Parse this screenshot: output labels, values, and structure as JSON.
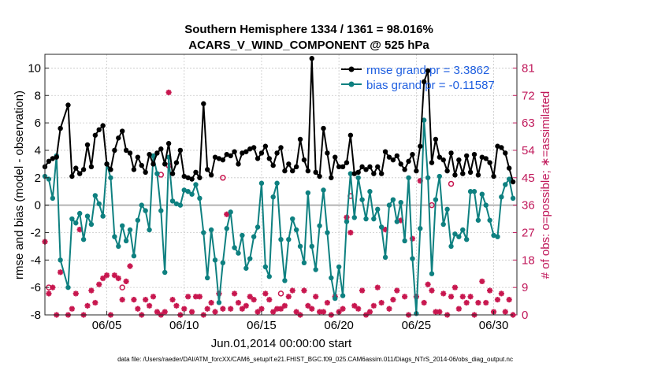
{
  "chart_data": {
    "type": "line",
    "title_line1": "Southern Hemisphere 1334 / 1361 = 98.016%",
    "title_line2": "ACARS_V_WIND_COMPONENT @ 525 hPa",
    "xlabel": "Jun.01,2014 00:00:00 start",
    "ylabel_left": "rmse and bias (model - observation)",
    "ylabel_right": "# of obs: o=possible; ∗=assimilated",
    "x_ticks": [
      {
        "day": 5,
        "label": "06/05"
      },
      {
        "day": 10,
        "label": "06/10"
      },
      {
        "day": 15,
        "label": "06/15"
      },
      {
        "day": 20,
        "label": "06/20"
      },
      {
        "day": 25,
        "label": "06/25"
      },
      {
        "day": 30,
        "label": "06/30"
      }
    ],
    "xlim": [
      1.0,
      31.5
    ],
    "ylim_left": [
      -8,
      11
    ],
    "yticks_left": [
      -8,
      -6,
      -4,
      -2,
      0,
      2,
      4,
      6,
      8,
      10
    ],
    "ylim_right": [
      0,
      85.5
    ],
    "yticks_right": [
      0,
      9,
      18,
      27,
      36,
      45,
      54,
      63,
      72,
      81
    ],
    "legend": {
      "rmse": "rmse grand pr = 3.3862",
      "bias": "bias grand pr = -0.11587"
    },
    "colors": {
      "rmse": "#000000",
      "bias": "#0e8080",
      "obs": "#c8174f",
      "zero_line": "#b3b3b3",
      "right_axis": "#c0185a",
      "legend_text": "#1f5fe0"
    },
    "series": [
      {
        "name": "rmse",
        "x": [
          1.0,
          1.25,
          1.5,
          1.75,
          2.0,
          2.5,
          2.75,
          3.0,
          3.25,
          3.5,
          3.75,
          4.0,
          4.25,
          4.5,
          4.75,
          5.0,
          5.25,
          5.5,
          5.75,
          6.0,
          6.25,
          6.5,
          6.75,
          7.0,
          7.25,
          7.5,
          7.75,
          8.0,
          8.25,
          8.5,
          8.75,
          9.0,
          9.25,
          9.5,
          9.75,
          10.0,
          10.25,
          10.5,
          10.75,
          11.0,
          11.25,
          11.5,
          11.75,
          12.0,
          12.25,
          12.5,
          12.75,
          13.0,
          13.25,
          13.5,
          13.75,
          14.0,
          14.25,
          14.5,
          14.75,
          15.0,
          15.25,
          15.5,
          15.75,
          16.0,
          16.25,
          16.5,
          16.75,
          17.0,
          17.25,
          17.5,
          17.75,
          18.0,
          18.25,
          18.5,
          18.75,
          19.0,
          19.25,
          19.5,
          19.75,
          20.0,
          20.25,
          20.5,
          20.75,
          21.0,
          21.25,
          21.5,
          21.75,
          22.0,
          22.25,
          22.5,
          22.75,
          23.0,
          23.25,
          23.5,
          23.75,
          24.0,
          24.25,
          24.5,
          24.75,
          25.0,
          25.25,
          25.5,
          25.75,
          26.0,
          26.25,
          26.5,
          26.75,
          27.0,
          27.25,
          27.5,
          27.75,
          28.0,
          28.25,
          28.5,
          28.75,
          29.0,
          29.25,
          29.5,
          29.75,
          30.0,
          30.25,
          30.5,
          30.75,
          31.0,
          31.25
        ],
        "values": [
          2.8,
          3.2,
          3.4,
          3.5,
          5.6,
          7.3,
          2.1,
          2.7,
          2.3,
          2.6,
          4.4,
          2.8,
          5.1,
          5.5,
          5.8,
          3.0,
          2.6,
          4.0,
          4.9,
          5.4,
          4.0,
          3.8,
          2.6,
          3.5,
          2.9,
          2.4,
          3.7,
          3.0,
          3.8,
          4.1,
          3.0,
          4.5,
          2.3,
          3.1,
          4.0,
          2.1,
          2.0,
          1.9,
          2.4,
          2.0,
          7.4,
          2.6,
          2.2,
          3.5,
          3.4,
          3.3,
          3.7,
          3.6,
          3.9,
          3.0,
          3.8,
          3.9,
          4.1,
          4.2,
          3.4,
          3.8,
          4.3,
          3.4,
          2.9,
          3.8,
          4.2,
          2.5,
          3.0,
          2.5,
          2.8,
          4.8,
          3.3,
          2.5,
          10.7,
          2.4,
          2.1,
          5.6,
          3.8,
          2.0,
          3.5,
          2.8,
          2.8,
          3.1,
          5.1,
          2.3,
          2.4,
          2.8,
          2.6,
          2.8,
          2.3,
          2.8,
          2.3,
          3.9,
          3.5,
          3.3,
          3.6,
          3.0,
          2.6,
          3.2,
          3.7,
          2.5,
          4.3,
          9.0,
          9.8,
          3.1,
          4.8,
          3.5,
          3.3,
          2.5,
          3.8,
          2.2,
          3.3,
          2.3,
          3.6,
          2.4,
          3.7,
          2.2,
          3.5,
          3.4,
          3.1,
          2.1,
          4.3,
          4.2,
          3.8,
          2.7,
          1.7
        ]
      },
      {
        "name": "bias",
        "x": [
          1.0,
          1.25,
          1.5,
          1.75,
          2.0,
          2.5,
          2.75,
          3.0,
          3.25,
          3.5,
          3.75,
          4.0,
          4.25,
          4.5,
          4.75,
          5.0,
          5.25,
          5.5,
          5.75,
          6.0,
          6.25,
          6.5,
          6.75,
          7.0,
          7.25,
          7.5,
          7.75,
          8.0,
          8.25,
          8.5,
          8.75,
          9.0,
          9.25,
          9.5,
          9.75,
          10.0,
          10.25,
          10.5,
          10.75,
          11.0,
          11.25,
          11.5,
          11.75,
          12.0,
          12.25,
          12.5,
          12.75,
          13.0,
          13.25,
          13.5,
          13.75,
          14.0,
          14.25,
          14.5,
          14.75,
          15.0,
          15.25,
          15.5,
          15.75,
          16.0,
          16.25,
          16.5,
          16.75,
          17.0,
          17.25,
          17.5,
          17.75,
          18.0,
          18.25,
          18.5,
          18.75,
          19.0,
          19.25,
          19.5,
          19.75,
          20.0,
          20.25,
          20.5,
          20.75,
          21.0,
          21.25,
          21.5,
          21.75,
          22.0,
          22.25,
          22.5,
          22.75,
          23.0,
          23.25,
          23.5,
          23.75,
          24.0,
          24.25,
          24.5,
          24.75,
          25.0,
          25.25,
          25.5,
          25.75,
          26.0,
          26.25,
          26.5,
          26.75,
          27.0,
          27.25,
          27.5,
          27.75,
          28.0,
          28.25,
          28.5,
          28.75,
          29.0,
          29.25,
          29.5,
          29.75,
          30.0,
          30.25,
          30.5,
          30.75,
          31.0,
          31.25
        ],
        "values": [
          2.1,
          1.9,
          0.5,
          3.6,
          -4.0,
          -6.0,
          -1.0,
          -1.3,
          -0.6,
          -2.5,
          -0.8,
          -1.4,
          0.7,
          0.1,
          -0.8,
          3.0,
          2.0,
          -2.3,
          -3.0,
          -1.5,
          -2.6,
          -1.8,
          -3.7,
          -1.1,
          0.0,
          -0.4,
          -1.8,
          3.6,
          2.3,
          -0.4,
          -4.9,
          3.5,
          0.3,
          0.1,
          0.0,
          1.1,
          1.0,
          0.8,
          1.5,
          0.5,
          -2.0,
          -5.3,
          -1.8,
          -4.0,
          -7.1,
          -4.2,
          -1.7,
          -0.5,
          -3.1,
          -3.5,
          -2.2,
          -4.6,
          -3.9,
          -2.3,
          -1.6,
          1.6,
          -4.5,
          -5.2,
          0.6,
          1.6,
          -2.5,
          -5.5,
          -2.5,
          -1.0,
          -1.8,
          -3.0,
          -4.2,
          0.9,
          -3.0,
          -4.7,
          -1.5,
          1.1,
          -2.0,
          -5.3,
          -6.8,
          -4.5,
          -6.6,
          -1.2,
          2.3,
          -0.9,
          2.0,
          0.4,
          -1.0,
          1.0,
          -1.0,
          -0.3,
          -1.6,
          -3.8,
          0.0,
          0.4,
          -1.2,
          0.2,
          -2.6,
          2.0,
          -3.9,
          -7.9,
          -1.7,
          6.2,
          2.0,
          -5.0,
          0.4,
          2.1,
          -1.4,
          -0.3,
          -3.0,
          -2.1,
          -2.3,
          -1.8,
          -2.5,
          1.0,
          1.0,
          -1.1,
          0.8,
          0.0,
          -1.1,
          -2.2,
          -2.3,
          0.6,
          1.5,
          1.9,
          0.5
        ]
      },
      {
        "name": "obs_assimilated",
        "x": [
          1.0,
          1.25,
          1.5,
          1.75,
          2.0,
          2.5,
          2.75,
          3.0,
          3.25,
          3.5,
          3.75,
          4.0,
          4.25,
          4.5,
          4.75,
          5.0,
          5.25,
          5.5,
          5.75,
          6.0,
          6.25,
          6.5,
          6.75,
          7.0,
          7.25,
          7.5,
          7.75,
          8.0,
          8.25,
          8.5,
          8.75,
          9.0,
          9.25,
          9.5,
          9.75,
          10.0,
          10.25,
          10.5,
          10.75,
          11.0,
          11.25,
          11.5,
          11.75,
          12.0,
          12.25,
          12.5,
          12.75,
          13.0,
          13.25,
          13.5,
          13.75,
          14.0,
          14.25,
          14.5,
          14.75,
          15.0,
          15.25,
          15.5,
          15.75,
          16.0,
          16.25,
          16.5,
          16.75,
          17.0,
          17.25,
          17.5,
          17.75,
          18.0,
          18.25,
          18.5,
          18.75,
          19.0,
          19.25,
          19.5,
          19.75,
          20.0,
          20.25,
          20.5,
          20.75,
          21.0,
          21.25,
          21.5,
          21.75,
          22.0,
          22.25,
          22.5,
          22.75,
          23.0,
          23.25,
          23.5,
          23.75,
          24.0,
          24.25,
          24.5,
          24.75,
          25.0,
          25.25,
          25.5,
          25.75,
          26.0,
          26.25,
          26.5,
          26.75,
          27.0,
          27.25,
          27.5,
          27.75,
          28.0,
          28.25,
          28.5,
          28.75,
          29.0,
          29.25,
          29.5,
          29.75,
          30.0,
          30.25,
          30.5,
          30.75,
          31.0,
          31.25
        ],
        "values": [
          24,
          7,
          9,
          0,
          14,
          0,
          2,
          7,
          28,
          0,
          3,
          8,
          4,
          10,
          12,
          13,
          0,
          13,
          12,
          5,
          11,
          16,
          5,
          2,
          0,
          5,
          3,
          6,
          1,
          0,
          1,
          73,
          5,
          3,
          0,
          2,
          6,
          1,
          6,
          6,
          0,
          2,
          4,
          1,
          7,
          2,
          33,
          2,
          7,
          4,
          2,
          3,
          6,
          5,
          1,
          2,
          7,
          5,
          1,
          2,
          2,
          3,
          6,
          8,
          1,
          0,
          8,
          3,
          2,
          6,
          1,
          1,
          4,
          0,
          6,
          1,
          2,
          32,
          27,
          3,
          2,
          8,
          0,
          1,
          3,
          9,
          4,
          28,
          2,
          5,
          8,
          31,
          6,
          0,
          25,
          6,
          44,
          4,
          10,
          8,
          1,
          1,
          7,
          0,
          6,
          9,
          2,
          6,
          4,
          6,
          0,
          4,
          11,
          4,
          8,
          1,
          5,
          7,
          1,
          5,
          0
        ]
      }
    ],
    "obs_possible_markers": [
      {
        "x": 1.25,
        "value": 9
      },
      {
        "x": 6.0,
        "value": 9
      },
      {
        "x": 8.5,
        "value": 46
      },
      {
        "x": 9.0,
        "value": 49
      },
      {
        "x": 12.5,
        "value": 45
      },
      {
        "x": 16.25,
        "value": 7
      },
      {
        "x": 20.75,
        "value": 39
      },
      {
        "x": 26.0,
        "value": 36
      },
      {
        "x": 27.25,
        "value": 43
      }
    ],
    "footer": "data file: /Users/raeder/DAI/ATM_forcXX/CAM6_setup/f.e21.FHIST_BGC.f09_025.CAM6assim.011/Diags_NTrS_2014-06/obs_diag_output.nc"
  }
}
